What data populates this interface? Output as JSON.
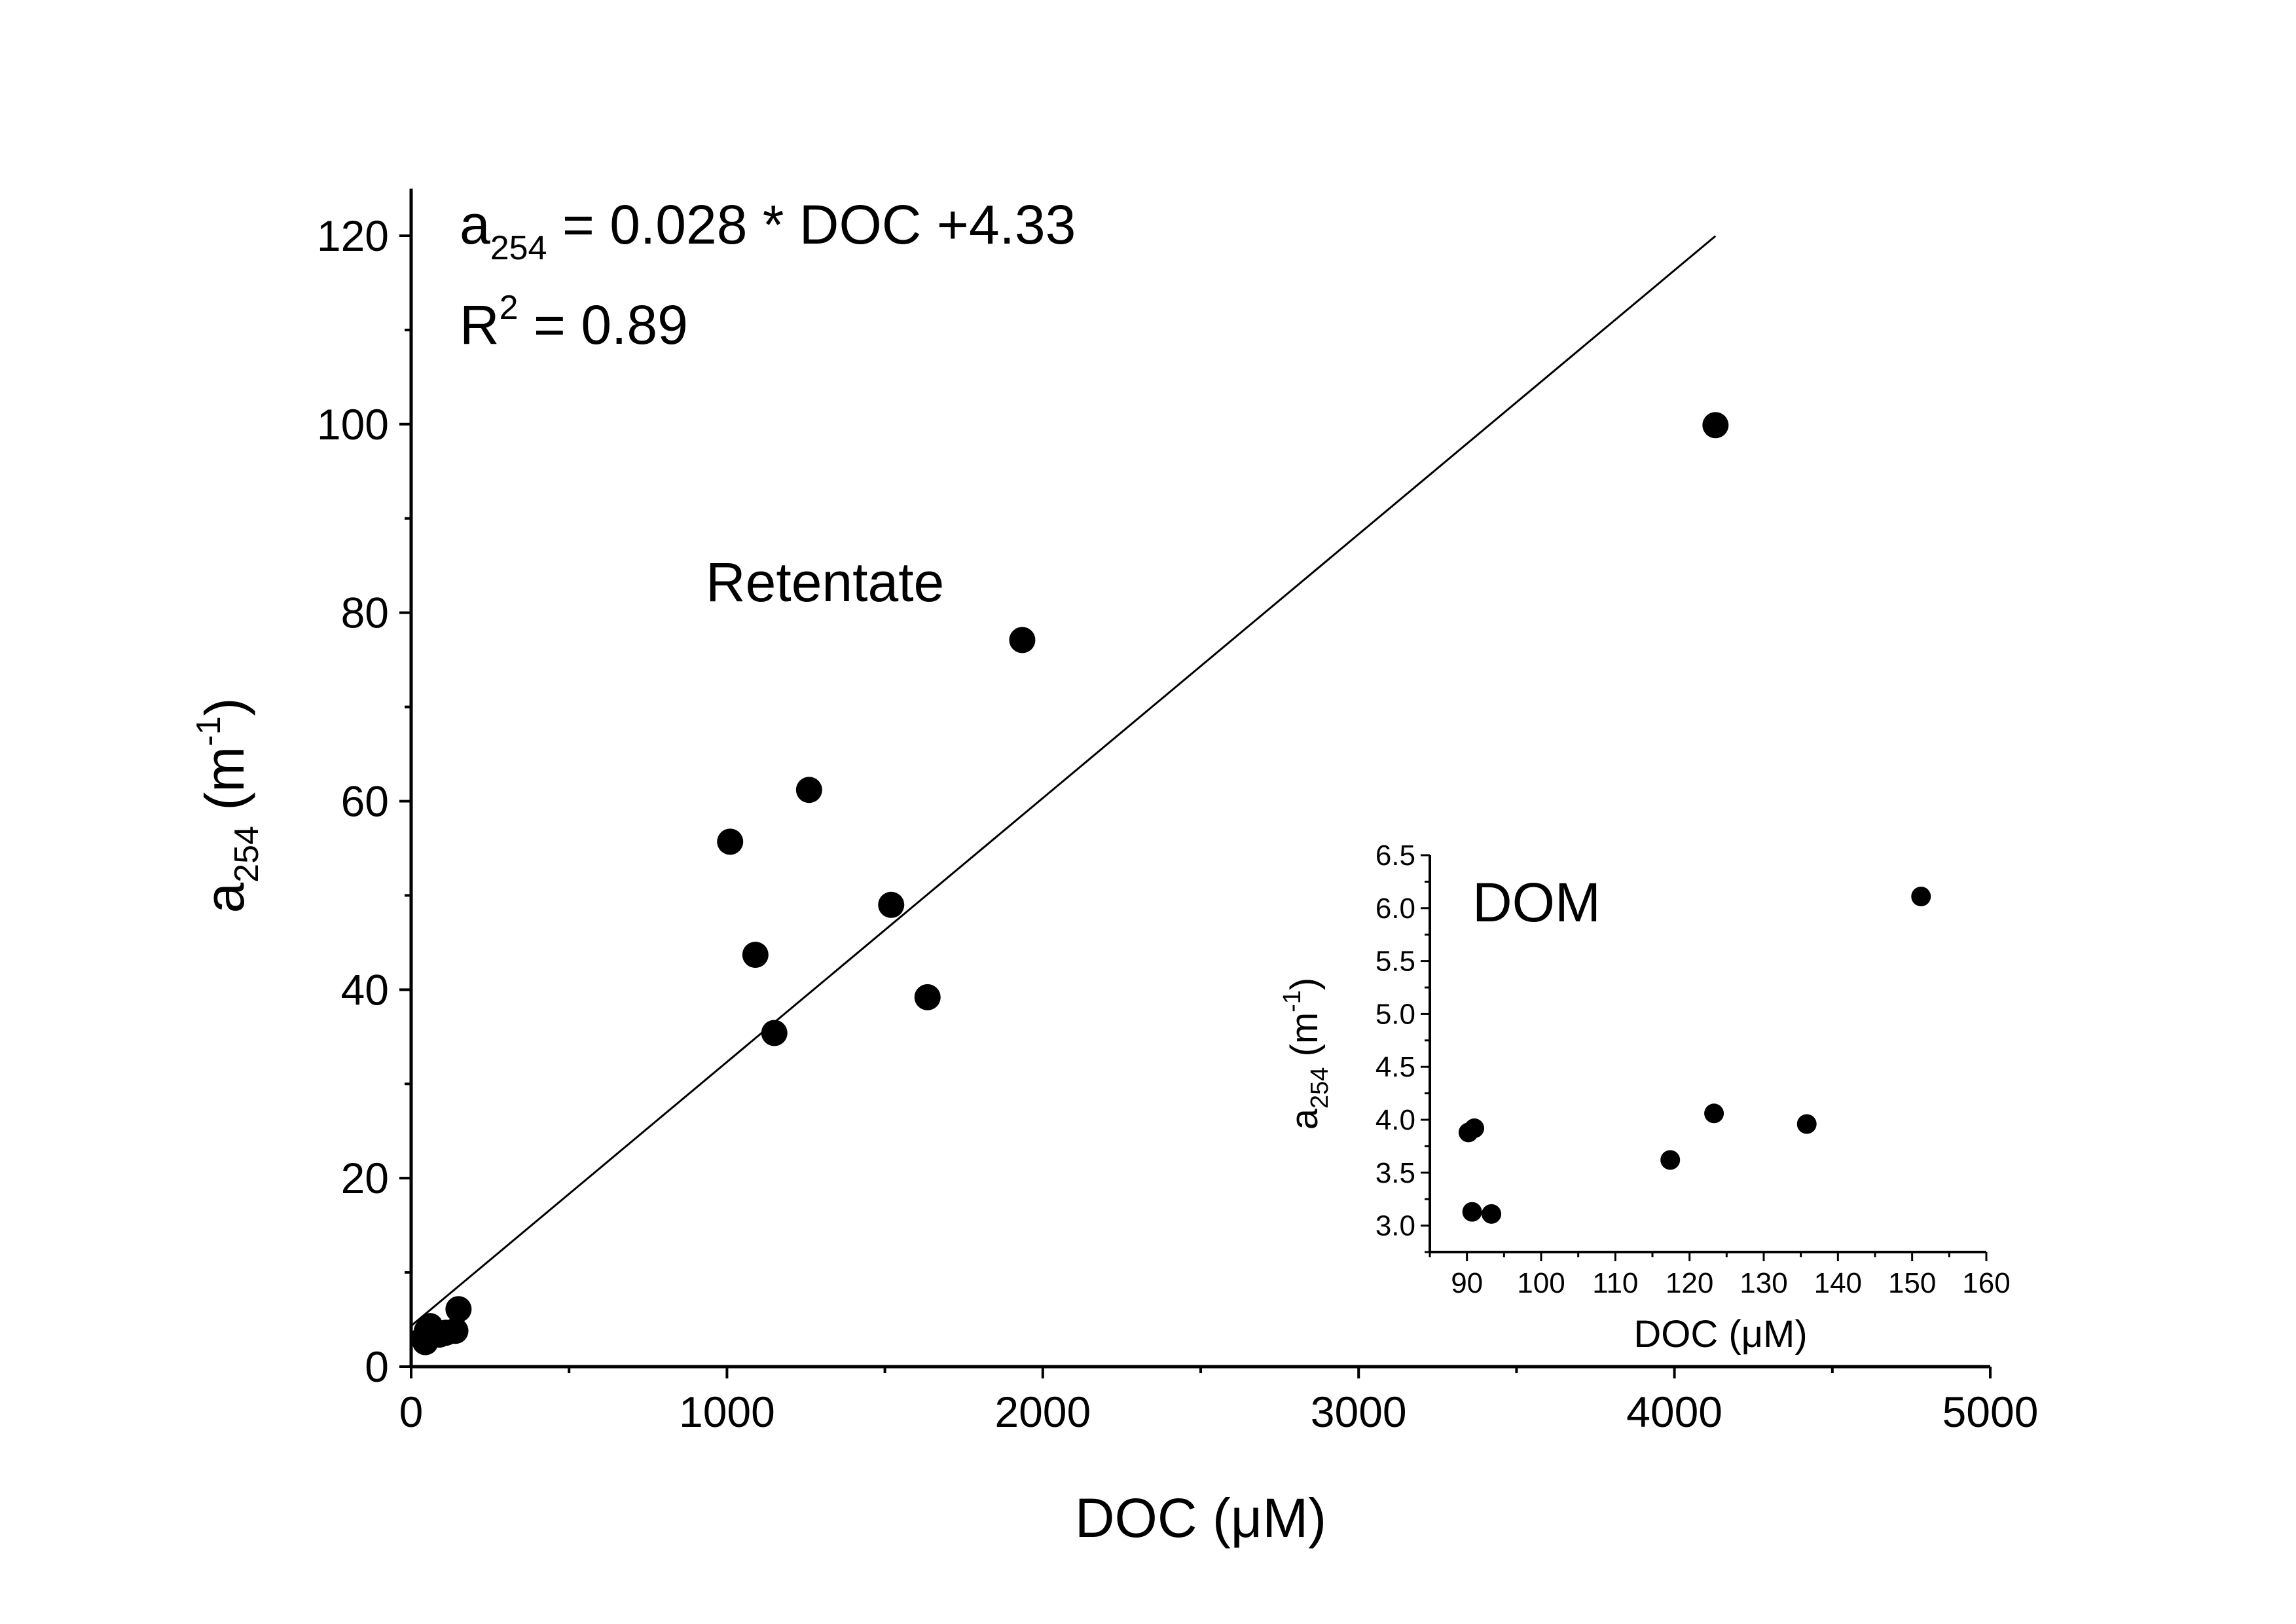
{
  "chart_data": [
    {
      "type": "scatter",
      "xlabel": {
        "base": "DOC (μM)"
      },
      "ylabel": {
        "base": "a",
        "sub": "254",
        "unit_open": " (m",
        "sup": "-1",
        "unit_close": ")"
      },
      "xlim": [
        0,
        5000
      ],
      "ylim": [
        0,
        125
      ],
      "xticks": [
        0,
        1000,
        2000,
        3000,
        4000,
        5000
      ],
      "yticks": [
        0,
        20,
        40,
        60,
        80,
        100,
        120
      ],
      "xtick_labels": [
        "0",
        "1000",
        "2000",
        "3000",
        "4000",
        "5000"
      ],
      "ytick_labels": [
        "0",
        "20",
        "40",
        "60",
        "80",
        "100",
        "120"
      ],
      "equation": {
        "a": "a",
        "sub": "254",
        "rest": " = 0.028 * DOC +4.33"
      },
      "r2": {
        "r": "R",
        "sup": "2",
        "rest": " = 0.89"
      },
      "annotation": "Retentate",
      "fit": {
        "slope": 0.028,
        "intercept": 4.33,
        "x_range": [
          0,
          4130
        ]
      },
      "points": [
        {
          "x": 40,
          "y": 3.0
        },
        {
          "x": 45,
          "y": 2.6
        },
        {
          "x": 50,
          "y": 3.8
        },
        {
          "x": 60,
          "y": 4.3
        },
        {
          "x": 90,
          "y": 3.4
        },
        {
          "x": 110,
          "y": 3.6
        },
        {
          "x": 140,
          "y": 3.8
        },
        {
          "x": 150,
          "y": 6.1
        },
        {
          "x": 1010,
          "y": 55.7
        },
        {
          "x": 1090,
          "y": 43.7
        },
        {
          "x": 1150,
          "y": 35.4
        },
        {
          "x": 1260,
          "y": 61.2
        },
        {
          "x": 1520,
          "y": 49.0
        },
        {
          "x": 1635,
          "y": 39.2
        },
        {
          "x": 1935,
          "y": 77.1
        },
        {
          "x": 4130,
          "y": 99.9
        }
      ]
    },
    {
      "type": "scatter",
      "inset": true,
      "xlabel": {
        "base": "DOC (μM)"
      },
      "ylabel": {
        "base": "a",
        "sub": "254",
        "unit_open": " (m",
        "sup": "-1",
        "unit_close": ")"
      },
      "xlim": [
        85,
        160
      ],
      "ylim": [
        2.75,
        6.5
      ],
      "xticks": [
        90,
        100,
        110,
        120,
        130,
        140,
        150,
        160
      ],
      "yticks": [
        3.0,
        3.5,
        4.0,
        4.5,
        5.0,
        5.5,
        6.0,
        6.5
      ],
      "xtick_labels": [
        "90",
        "100",
        "110",
        "120",
        "130",
        "140",
        "150",
        "160"
      ],
      "ytick_labels": [
        "3.0",
        "3.5",
        "4.0",
        "4.5",
        "5.0",
        "5.5",
        "6.0",
        "6.5"
      ],
      "annotation": "DOM",
      "points": [
        {
          "x": 90.2,
          "y": 3.88
        },
        {
          "x": 91.0,
          "y": 3.92
        },
        {
          "x": 90.7,
          "y": 3.13
        },
        {
          "x": 93.3,
          "y": 3.11
        },
        {
          "x": 117.4,
          "y": 3.62
        },
        {
          "x": 123.3,
          "y": 4.06
        },
        {
          "x": 135.8,
          "y": 3.96
        },
        {
          "x": 151.2,
          "y": 6.11
        }
      ]
    }
  ]
}
